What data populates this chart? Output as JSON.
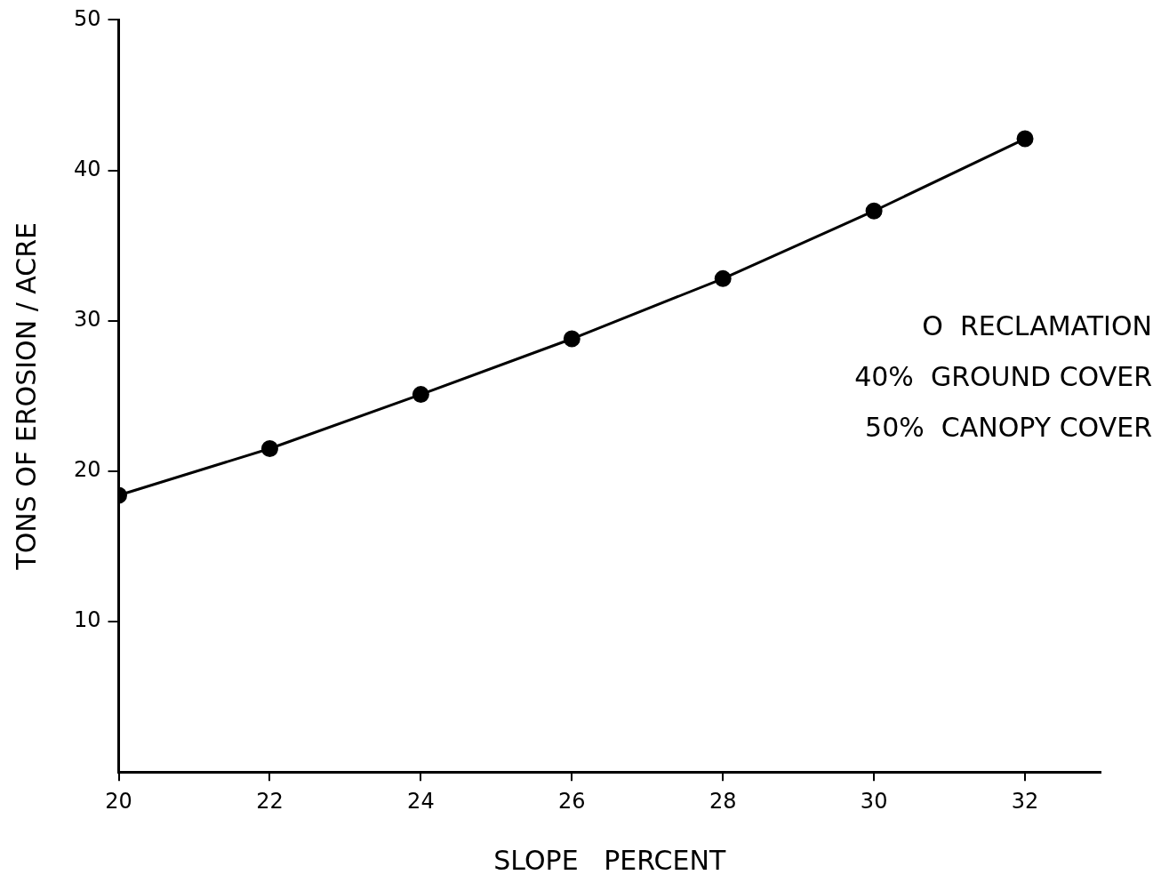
{
  "chart_data": {
    "type": "line",
    "xlabel": "SLOPE   PERCENT",
    "ylabel": "TONS OF EROSION / ACRE",
    "x": [
      20,
      22,
      24,
      26,
      28,
      30,
      32
    ],
    "series": [
      {
        "color": "#000000",
        "values": [
          18.4,
          21.5,
          25.1,
          28.8,
          32.8,
          37.3,
          42.1
        ]
      }
    ],
    "xlim": [
      20,
      33
    ],
    "xticks": [
      20,
      22,
      24,
      26,
      28,
      30,
      32
    ],
    "ylim": [
      0,
      50
    ],
    "yticks": [
      10,
      20,
      30,
      40,
      50
    ],
    "annotations": [
      "O  RECLAMATION",
      "40%  GROUND COVER",
      "50%  CANOPY COVER"
    ],
    "grid": false,
    "legend": false,
    "marker": "circle",
    "line_style": "solid"
  }
}
